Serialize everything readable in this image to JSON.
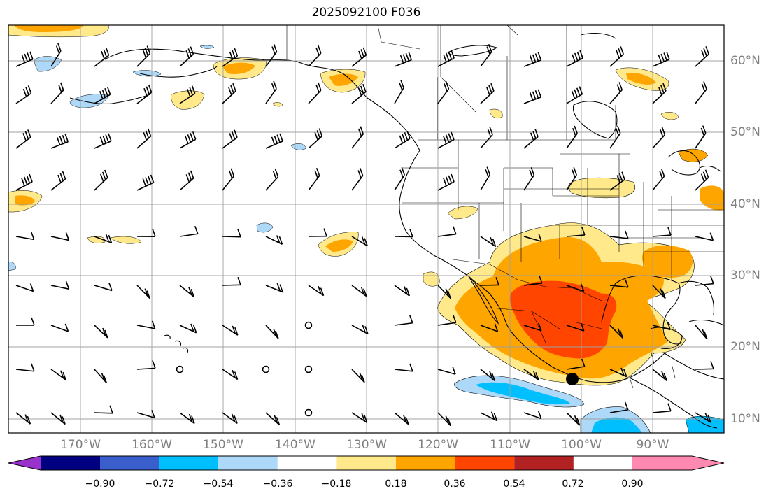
{
  "title": "2025092100 F036",
  "lat_labels": [
    "60°N",
    "50°N",
    "40°N",
    "30°N",
    "20°N",
    "10°N"
  ],
  "lon_labels": [
    "170°W",
    "160°W",
    "150°W",
    "140°W",
    "130°W",
    "120°W",
    "110°W",
    "100°W",
    "90°W"
  ],
  "colorbar": {
    "ticks": [
      "−0.90",
      "−0.72",
      "−0.54",
      "−0.36",
      "−0.18",
      "0.18",
      "0.36",
      "0.54",
      "0.72",
      "0.90"
    ],
    "colors": [
      "#9932cc",
      "#000080",
      "#3a5fcd",
      "#00bfff",
      "#add8f8",
      "#ffffff",
      "#ffe98a",
      "#ffa500",
      "#ff4500",
      "#b22222",
      "#ff89b0"
    ]
  },
  "colors": {
    "coast": "#000000",
    "grid": "#a0a0a0",
    "label_gray": "#808080"
  },
  "marker": {
    "lat": 15.5,
    "lon": "100.5°W"
  }
}
